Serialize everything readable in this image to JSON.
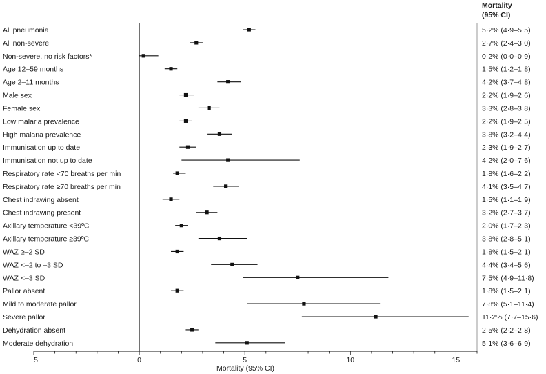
{
  "chart_data": {
    "type": "forest",
    "xlabel": "Mortality (95% CI)",
    "column_header": [
      "Mortality",
      "(95% CI)"
    ],
    "xlim": [
      -5,
      16
    ],
    "xticks": [
      "−5",
      "0",
      "5",
      "10",
      "15"
    ],
    "xtick_values": [
      -5,
      0,
      5,
      10,
      15
    ],
    "reference_line": 0,
    "rows": [
      {
        "label": "All pneumonia",
        "est": 5.2,
        "lo": 4.9,
        "hi": 5.5,
        "text": "5·2% (4·9–5·5)"
      },
      {
        "label": "All non-severe",
        "est": 2.7,
        "lo": 2.4,
        "hi": 3.0,
        "text": "2·7% (2·4–3·0)"
      },
      {
        "label": "Non-severe, no risk factors*",
        "est": 0.2,
        "lo": 0.0,
        "hi": 0.9,
        "text": "0·2% (0·0–0·9)"
      },
      {
        "label": "Age 12–59 months",
        "est": 1.5,
        "lo": 1.2,
        "hi": 1.8,
        "text": "1·5% (1·2–1·8)"
      },
      {
        "label": "Age 2–11 months",
        "est": 4.2,
        "lo": 3.7,
        "hi": 4.8,
        "text": "4·2% (3·7–4·8)"
      },
      {
        "label": "Male sex",
        "est": 2.2,
        "lo": 1.9,
        "hi": 2.6,
        "text": "2·2% (1·9–2·6)"
      },
      {
        "label": "Female sex",
        "est": 3.3,
        "lo": 2.8,
        "hi": 3.8,
        "text": "3·3% (2·8–3·8)"
      },
      {
        "label": "Low malaria prevalence",
        "est": 2.2,
        "lo": 1.9,
        "hi": 2.5,
        "text": "2·2% (1·9–2·5)"
      },
      {
        "label": "High malaria prevalence",
        "est": 3.8,
        "lo": 3.2,
        "hi": 4.4,
        "text": "3·8% (3·2–4·4)"
      },
      {
        "label": "Immunisation up to date",
        "est": 2.3,
        "lo": 1.9,
        "hi": 2.7,
        "text": "2·3% (1·9–2·7)"
      },
      {
        "label": "Immunisation not up to date",
        "est": 4.2,
        "lo": 2.0,
        "hi": 7.6,
        "text": "4·2% (2·0–7·6)"
      },
      {
        "label": "Respiratory rate <70 breaths per min",
        "est": 1.8,
        "lo": 1.6,
        "hi": 2.2,
        "text": "1·8% (1·6–2·2)"
      },
      {
        "label": "Respiratory rate ≥70 breaths per min",
        "est": 4.1,
        "lo": 3.5,
        "hi": 4.7,
        "text": "4·1% (3·5–4·7)"
      },
      {
        "label": "Chest indrawing absent",
        "est": 1.5,
        "lo": 1.1,
        "hi": 1.9,
        "text": "1·5% (1·1–1·9)"
      },
      {
        "label": "Chest indrawing present",
        "est": 3.2,
        "lo": 2.7,
        "hi": 3.7,
        "text": "3·2% (2·7–3·7)"
      },
      {
        "label": "Axillary temperature <39ºC",
        "est": 2.0,
        "lo": 1.7,
        "hi": 2.3,
        "text": "2·0% (1·7–2·3)"
      },
      {
        "label": "Axillary temperature ≥39ºC",
        "est": 3.8,
        "lo": 2.8,
        "hi": 5.1,
        "text": "3·8% (2·8–5·1)"
      },
      {
        "label": "WAZ ≥–2 SD",
        "est": 1.8,
        "lo": 1.5,
        "hi": 2.1,
        "text": "1·8% (1·5–2·1)"
      },
      {
        "label": "WAZ <–2 to –3 SD",
        "est": 4.4,
        "lo": 3.4,
        "hi": 5.6,
        "text": "4·4% (3·4–5·6)"
      },
      {
        "label": "WAZ <–3 SD",
        "est": 7.5,
        "lo": 4.9,
        "hi": 11.8,
        "text": "7·5% (4·9–11·8)"
      },
      {
        "label": "Pallor absent",
        "est": 1.8,
        "lo": 1.5,
        "hi": 2.1,
        "text": "1·8% (1·5–2·1)"
      },
      {
        "label": "Mild to moderate pallor",
        "est": 7.8,
        "lo": 5.1,
        "hi": 11.4,
        "text": "7·8% (5·1–11·4)"
      },
      {
        "label": "Severe pallor",
        "est": 11.2,
        "lo": 7.7,
        "hi": 15.6,
        "text": "11·2% (7·7–15·6)"
      },
      {
        "label": "Dehydration absent",
        "est": 2.5,
        "lo": 2.2,
        "hi": 2.8,
        "text": "2·5% (2·2–2·8)"
      },
      {
        "label": "Moderate dehydration",
        "est": 5.1,
        "lo": 3.6,
        "hi": 6.9,
        "text": "5·1% (3·6–6·9)"
      }
    ]
  }
}
